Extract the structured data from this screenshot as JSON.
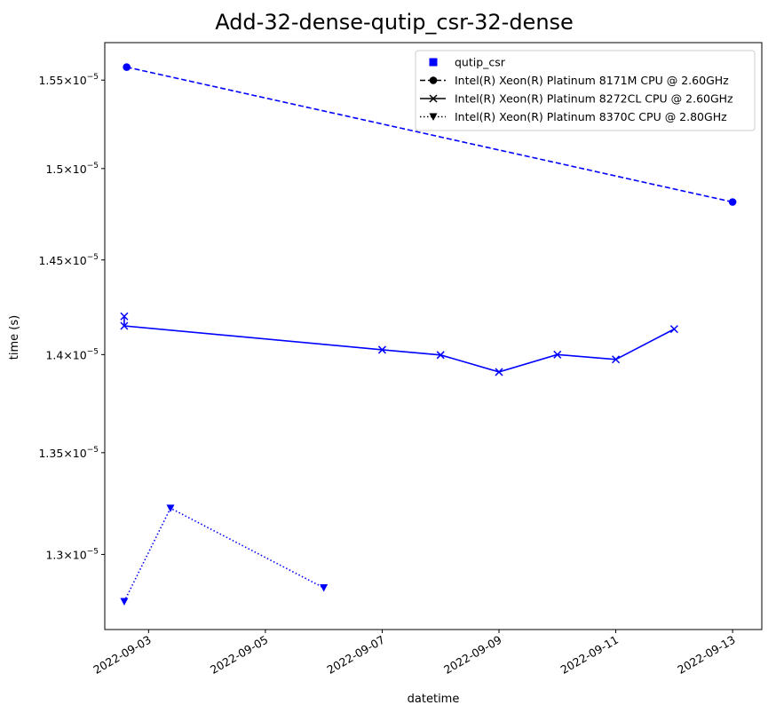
{
  "chart_data": {
    "type": "line",
    "title": "Add-32-dense-qutip_csr-32-dense",
    "xlabel": "datetime",
    "ylabel": "time (s)",
    "scale": "log",
    "x_ticks": [
      "2022-09-03",
      "2022-09-05",
      "2022-09-07",
      "2022-09-09",
      "2022-09-11",
      "2022-09-13"
    ],
    "y_ticks": [
      {
        "value": 1.3e-05,
        "mantissa": "1.3",
        "base": "×10",
        "exp": "−5"
      },
      {
        "value": 1.35e-05,
        "mantissa": "1.35",
        "base": "×10",
        "exp": "−5"
      },
      {
        "value": 1.4e-05,
        "mantissa": "1.4",
        "base": "×10",
        "exp": "−5"
      },
      {
        "value": 1.45e-05,
        "mantissa": "1.45",
        "base": "×10",
        "exp": "−5"
      },
      {
        "value": 1.5e-05,
        "mantissa": "1.5",
        "base": "×10",
        "exp": "−5"
      },
      {
        "value": 1.55e-05,
        "mantissa": "1.55",
        "base": "×10",
        "exp": "−5"
      }
    ],
    "xlim": [
      "2022-09-02 06:00",
      "2022-09-13 12:00"
    ],
    "ylim": [
      1.2643e-05,
      1.5717e-05
    ],
    "grid": false,
    "legend_position": "top-right",
    "legend": [
      {
        "label": "qutip_csr",
        "marker": "square",
        "linestyle": "none"
      },
      {
        "label": "Intel(R) Xeon(R) Platinum 8171M CPU @ 2.60GHz",
        "marker": "circle",
        "linestyle": "dashed"
      },
      {
        "label": "Intel(R) Xeon(R) Platinum 8272CL CPU @ 2.60GHz",
        "marker": "x",
        "linestyle": "solid"
      },
      {
        "label": "Intel(R) Xeon(R) Platinum 8370C CPU @ 2.80GHz",
        "marker": "triangle-down",
        "linestyle": "dotted"
      }
    ],
    "series": [
      {
        "name": "Intel(R) Xeon(R) Platinum 8171M CPU @ 2.60GHz",
        "color": "#0000ff",
        "marker": "circle",
        "linestyle": "dashed",
        "points": [
          {
            "x": "2022-09-02 15:00",
            "y": 1.5575e-05
          },
          {
            "x": "2022-09-13 00:00",
            "y": 1.4815e-05
          }
        ]
      },
      {
        "name": "Intel(R) Xeon(R) Platinum 8272CL CPU @ 2.60GHz",
        "color": "#0000ff",
        "marker": "x",
        "linestyle": "solid",
        "points": [
          {
            "x": "2022-09-02 14:00",
            "y": 1.42e-05
          },
          {
            "x": "2022-09-02 14:00",
            "y": 1.415e-05
          },
          {
            "x": "2022-09-07 00:00",
            "y": 1.4025e-05
          },
          {
            "x": "2022-09-08 00:00",
            "y": 1.3998e-05
          },
          {
            "x": "2022-09-09 00:00",
            "y": 1.391e-05
          },
          {
            "x": "2022-09-10 00:00",
            "y": 1.4e-05
          },
          {
            "x": "2022-09-11 00:00",
            "y": 1.3975e-05
          },
          {
            "x": "2022-09-12 00:00",
            "y": 1.4133e-05
          }
        ]
      },
      {
        "name": "Intel(R) Xeon(R) Platinum 8370C CPU @ 2.80GHz",
        "color": "#0000ff",
        "marker": "triangle-down",
        "linestyle": "dotted",
        "points": [
          {
            "x": "2022-09-02 14:00",
            "y": 1.2775e-05
          },
          {
            "x": "2022-09-03 09:00",
            "y": 1.3225e-05
          },
          {
            "x": "2022-09-06 00:00",
            "y": 1.284e-05
          }
        ]
      }
    ]
  }
}
